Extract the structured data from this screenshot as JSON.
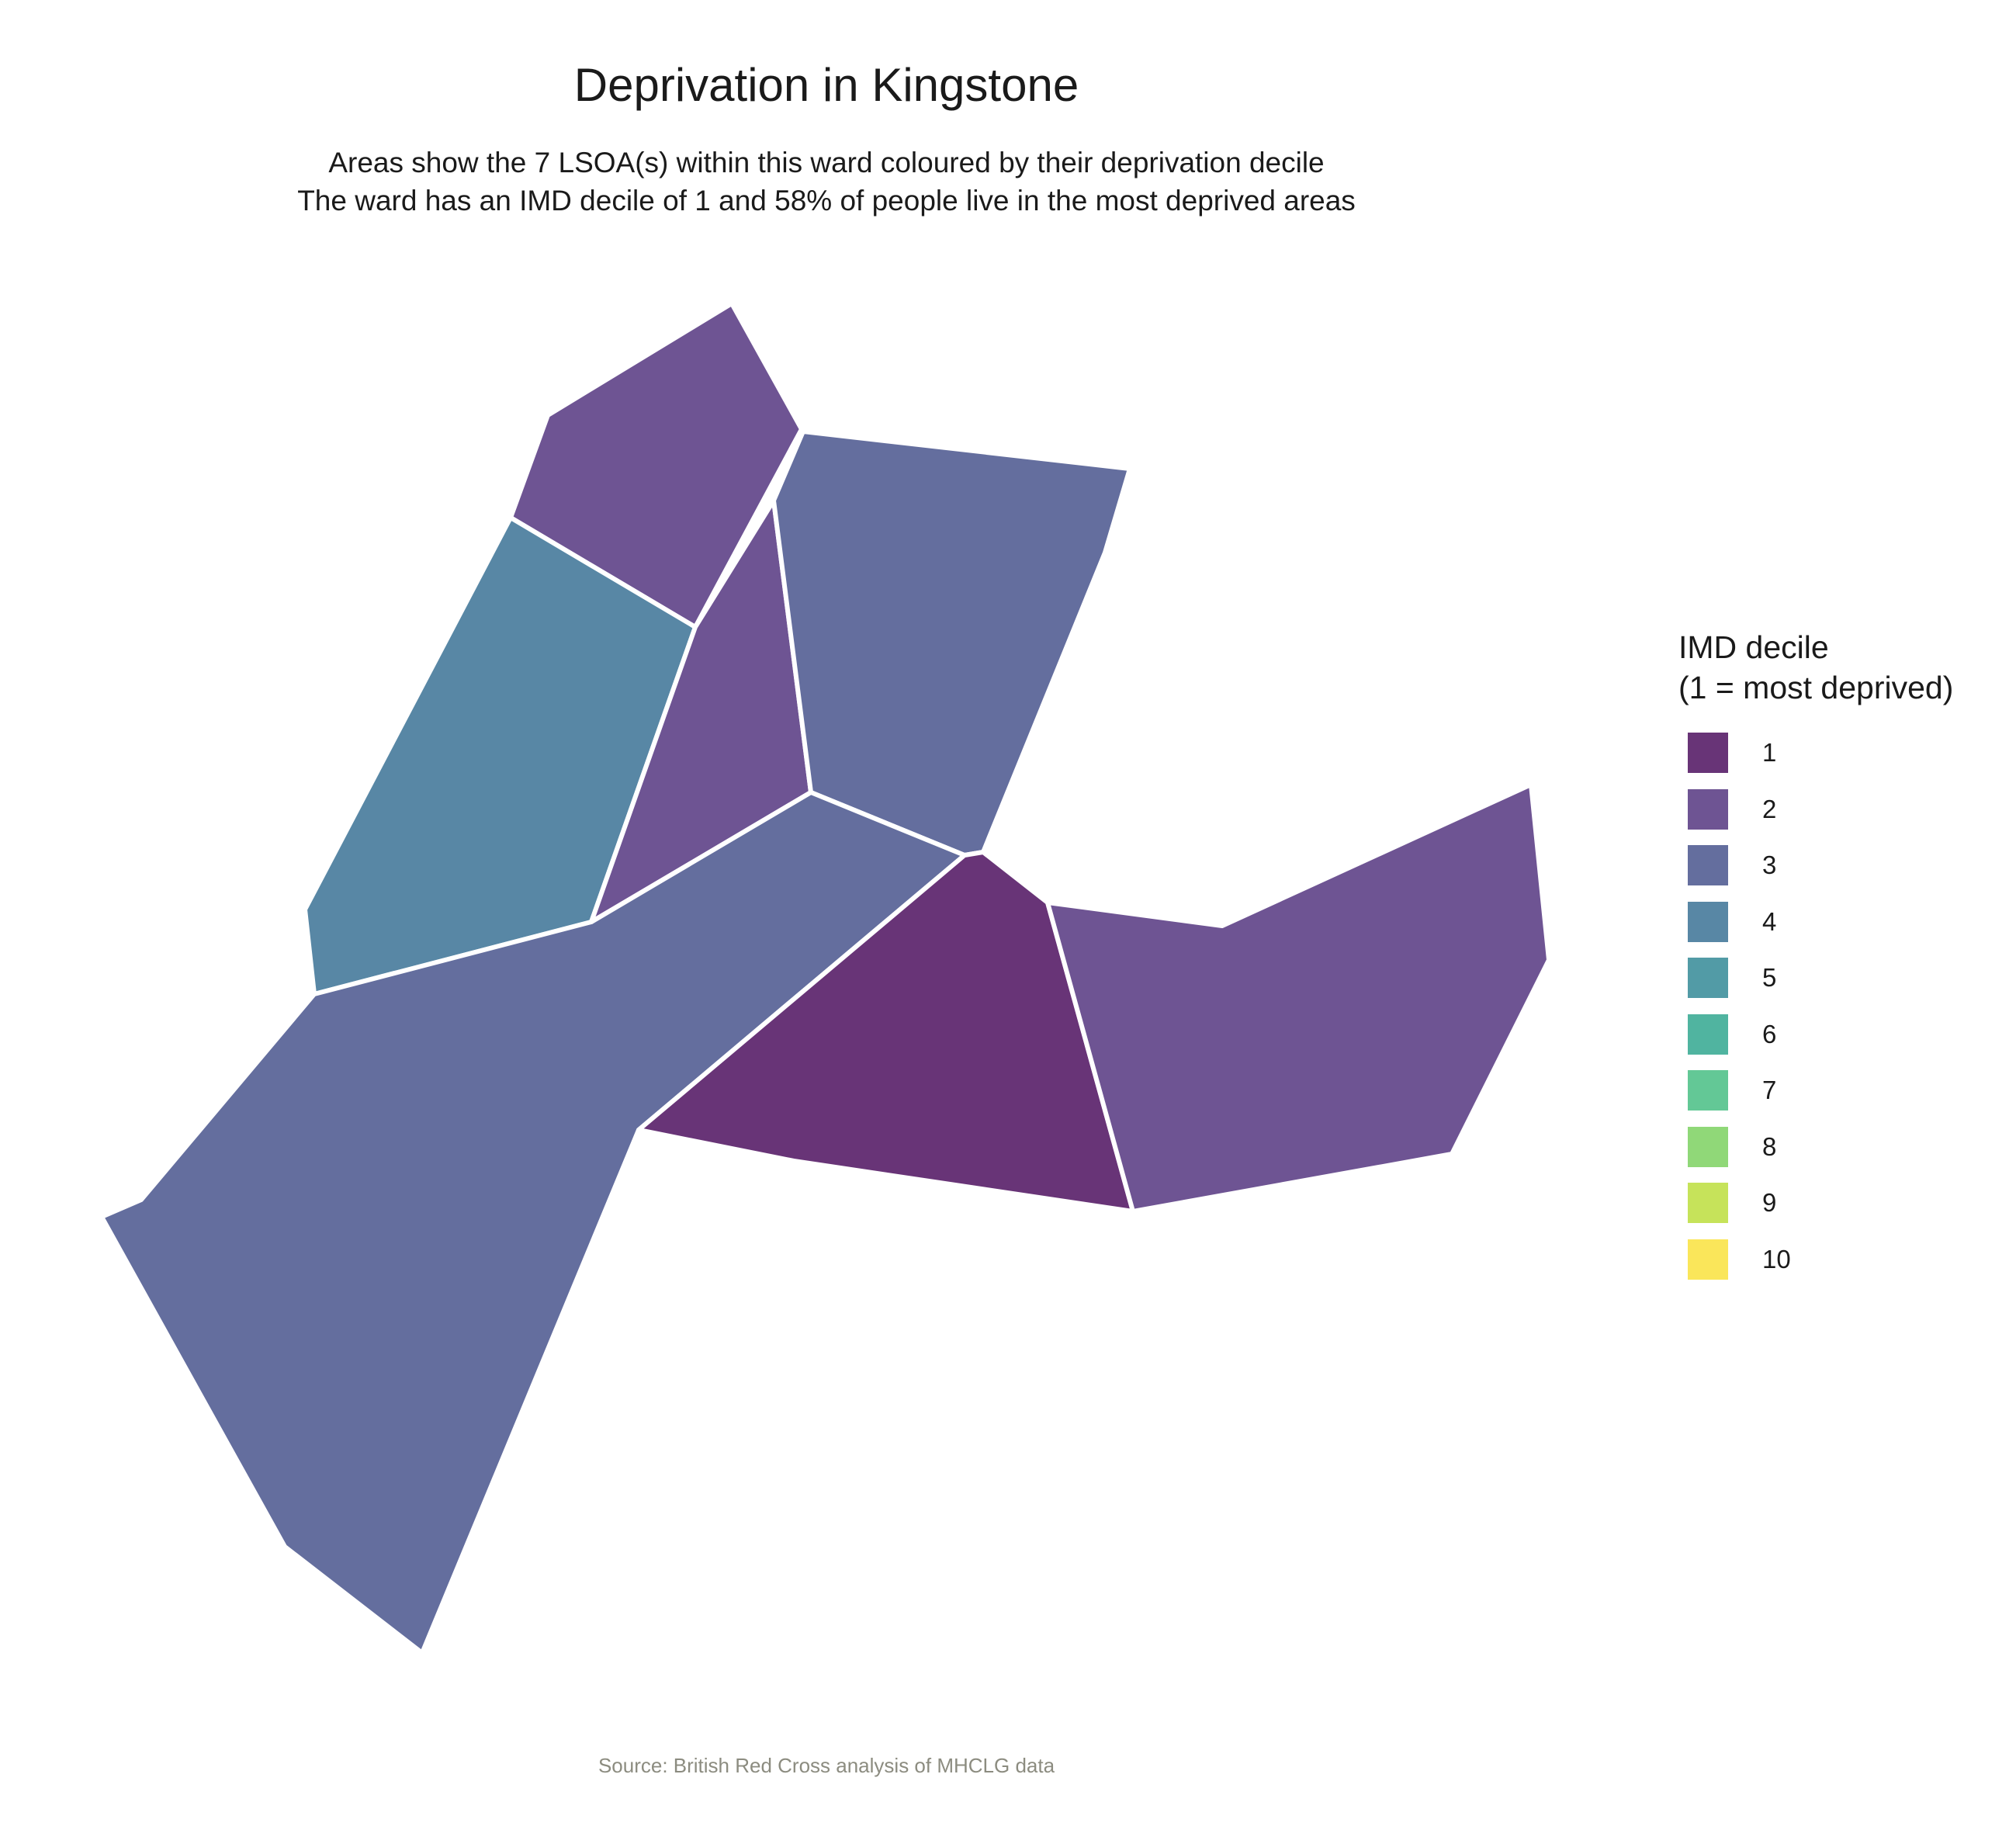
{
  "title": "Deprivation in Kingstone",
  "subtitle_line1": "Areas show the 7 LSOA(s) within this ward coloured by their deprivation decile",
  "subtitle_line2": "The ward has an IMD decile of 1 and 58% of people live in the most deprived areas",
  "caption": "Source: British Red Cross analysis of MHCLG data",
  "legend": {
    "title_line1": "IMD decile",
    "title_line2": "(1 = most deprived)",
    "items": [
      {
        "label": "1",
        "color": "#683477"
      },
      {
        "label": "2",
        "color": "#6e5493"
      },
      {
        "label": "3",
        "color": "#646e9e"
      },
      {
        "label": "4",
        "color": "#5887a5"
      },
      {
        "label": "5",
        "color": "#529ba6"
      },
      {
        "label": "6",
        "color": "#50b4a0"
      },
      {
        "label": "7",
        "color": "#63c896"
      },
      {
        "label": "8",
        "color": "#90d878"
      },
      {
        "label": "9",
        "color": "#c6e35a"
      },
      {
        "label": "10",
        "color": "#fae65a"
      }
    ]
  },
  "map_data": {
    "type": "choropleth",
    "border_color": "#ffffff",
    "areas": [
      {
        "name": "lsoa-north",
        "decile": 2
      },
      {
        "name": "lsoa-west",
        "decile": 4
      },
      {
        "name": "lsoa-centre",
        "decile": 2
      },
      {
        "name": "lsoa-northeast",
        "decile": 3
      },
      {
        "name": "lsoa-southwest",
        "decile": 3
      },
      {
        "name": "lsoa-south-centre",
        "decile": 1
      },
      {
        "name": "lsoa-east",
        "decile": 2
      }
    ]
  }
}
